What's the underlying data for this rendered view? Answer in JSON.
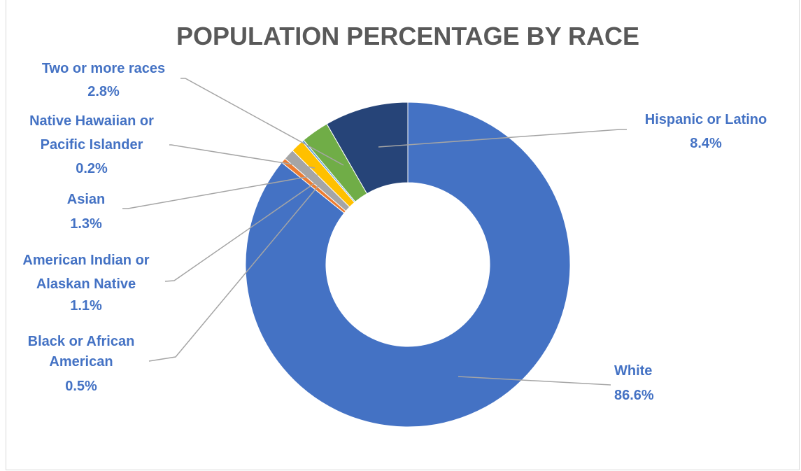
{
  "chart_data": {
    "type": "pie",
    "variant": "donut",
    "title": "POPULATION PERCENTAGE BY RACE",
    "slices": [
      {
        "name": "White",
        "value": 86.6,
        "value_label": "86.6%",
        "color": "#4472c4"
      },
      {
        "name": "Black or African American",
        "value": 0.5,
        "value_label": "0.5%",
        "color": "#ed7d31"
      },
      {
        "name": "American Indian or Alaskan Native",
        "value": 1.1,
        "value_label": "1.1%",
        "color": "#a5a5a5"
      },
      {
        "name": "Asian",
        "value": 1.3,
        "value_label": "1.3%",
        "color": "#ffc000"
      },
      {
        "name": "Native Hawaiian or Pacific Islander",
        "value": 0.2,
        "value_label": "0.2%",
        "color": "#5b9bd5"
      },
      {
        "name": "Two or more races",
        "value": 2.8,
        "value_label": "2.8%",
        "color": "#70ad47"
      },
      {
        "name": "Hispanic or Latino",
        "value": 8.4,
        "value_label": "8.4%",
        "color": "#264478"
      }
    ],
    "label_color": "#4472c4",
    "leader_line_color": "#a5a5a5"
  }
}
